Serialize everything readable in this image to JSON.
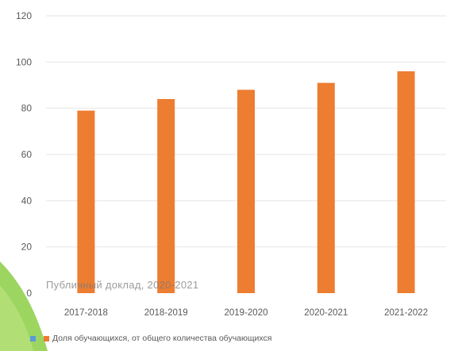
{
  "chart_data": {
    "type": "bar",
    "categories": [
      "2017-2018",
      "2018-2019",
      "2019-2020",
      "2020-2021",
      "2021-2022"
    ],
    "series": [
      {
        "name": "Доля обучающихся, от общего количества обучающихся",
        "values": [
          79,
          84,
          88,
          91,
          96
        ],
        "color": "#ed7d31"
      }
    ],
    "ylim": [
      0,
      120
    ],
    "yticks": [
      0,
      20,
      40,
      60,
      80,
      100,
      120
    ],
    "grid": true,
    "legend_position": "bottom",
    "overlay_text": "Публичный доклад, 2020-2021",
    "legend_extra_marker_color": "#5b9bd5",
    "accent_color": "#92d050"
  }
}
